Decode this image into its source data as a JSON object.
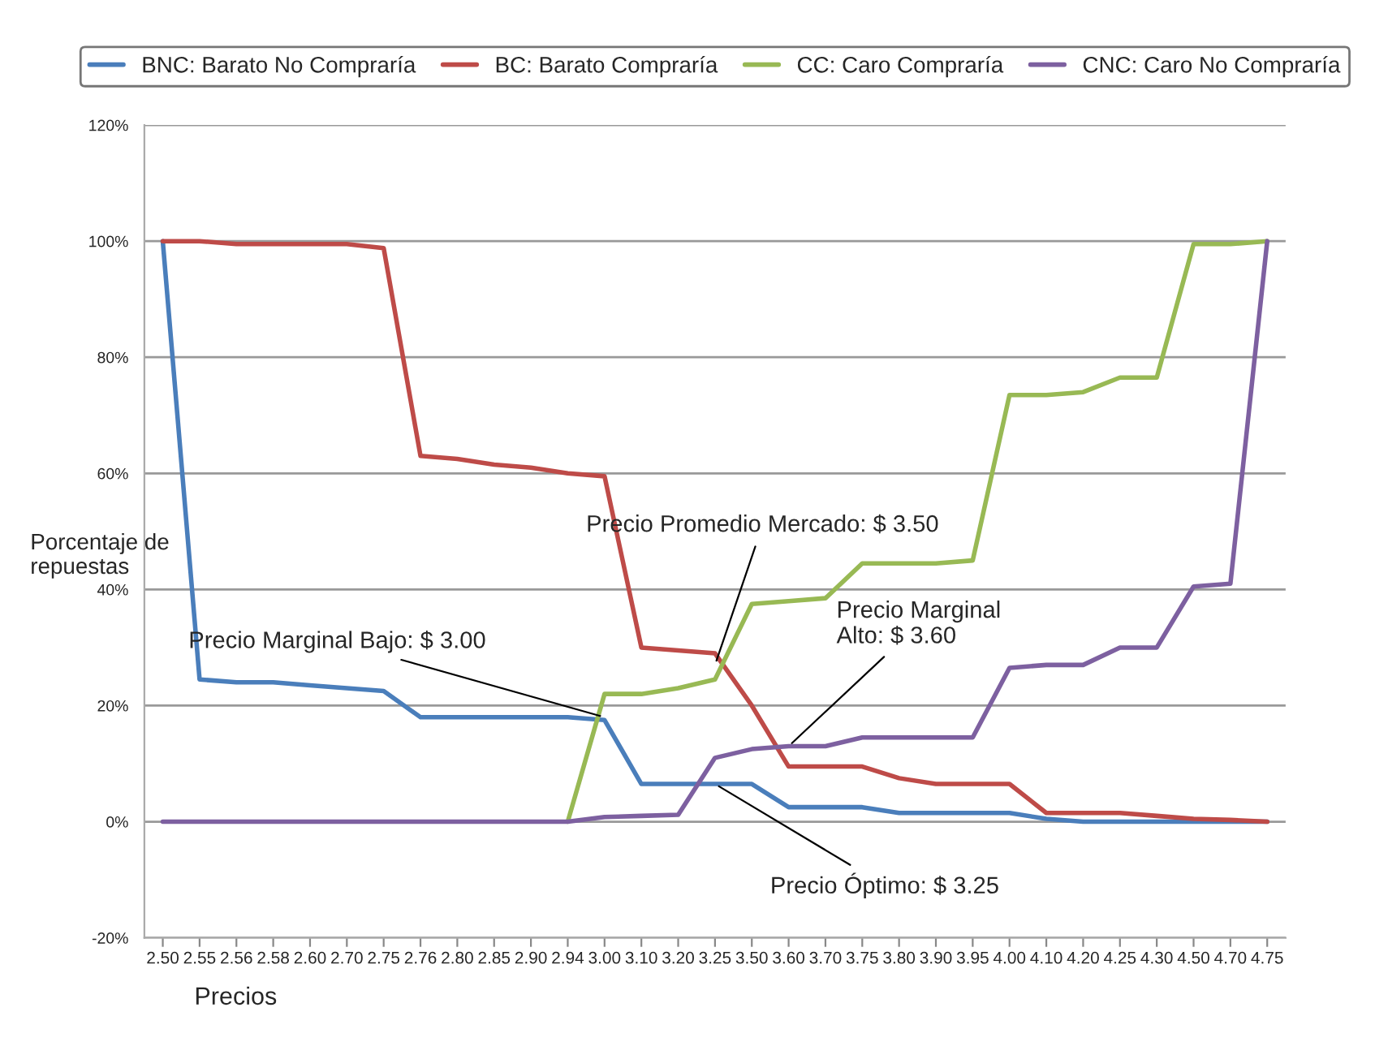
{
  "chart_data": {
    "type": "line",
    "xlabel": "Precios",
    "ylabel": "Porcentaje de\nrepuestas",
    "categories": [
      "2.50",
      "2.55",
      "2.56",
      "2.58",
      "2.60",
      "2.70",
      "2.75",
      "2.76",
      "2.80",
      "2.85",
      "2.90",
      "2.94",
      "3.00",
      "3.10",
      "3.20",
      "3.25",
      "3.50",
      "3.60",
      "3.70",
      "3.75",
      "3.80",
      "3.90",
      "3.95",
      "4.00",
      "4.10",
      "4.20",
      "4.25",
      "4.30",
      "4.50",
      "4.70",
      "4.75"
    ],
    "series": [
      {
        "name": "BNC: Barato No Compraría",
        "color": "#4a7ebb",
        "values": [
          100,
          24.5,
          24,
          24,
          23.5,
          23,
          22.5,
          18,
          18,
          18,
          18,
          18,
          17.5,
          6.5,
          6.5,
          6.5,
          6.5,
          2.5,
          2.5,
          2.5,
          1.5,
          1.5,
          1.5,
          1.5,
          0.5,
          0,
          0,
          0,
          0,
          0,
          0
        ]
      },
      {
        "name": "BC: Barato Compraría",
        "color": "#be4b48",
        "values": [
          100,
          100,
          99.5,
          99.5,
          99.5,
          99.5,
          98.8,
          63,
          62.5,
          61.5,
          61,
          60,
          59.5,
          30,
          29.5,
          29,
          20,
          9.5,
          9.5,
          9.5,
          7.5,
          6.5,
          6.5,
          6.5,
          1.5,
          1.5,
          1.5,
          1,
          0.5,
          0.3,
          0
        ]
      },
      {
        "name": "CC: Caro Compraría",
        "color": "#98b954",
        "values": [
          null,
          null,
          null,
          null,
          null,
          null,
          null,
          null,
          null,
          null,
          null,
          0,
          22,
          22,
          23,
          24.5,
          37.5,
          38,
          38.5,
          44.5,
          44.5,
          44.5,
          45,
          73.5,
          73.5,
          74,
          76.5,
          76.5,
          99.5,
          99.5,
          100
        ]
      },
      {
        "name": "CNC: Caro No Compraría",
        "color": "#7d60a0",
        "values": [
          0,
          0,
          0,
          0,
          0,
          0,
          0,
          0,
          0,
          0,
          0,
          0,
          0.8,
          1,
          1.2,
          11,
          12.5,
          13,
          13,
          14.5,
          14.5,
          14.5,
          14.5,
          26.5,
          27,
          27,
          30,
          30,
          40.5,
          41,
          100
        ]
      }
    ],
    "ylim": [
      -20,
      120
    ],
    "yticks": [
      {
        "value": -20,
        "label": "-20%"
      },
      {
        "value": 0,
        "label": "0%"
      },
      {
        "value": 20,
        "label": "20%"
      },
      {
        "value": 40,
        "label": "40%"
      },
      {
        "value": 60,
        "label": "60%"
      },
      {
        "value": 80,
        "label": "80%"
      },
      {
        "value": 100,
        "label": "100%"
      },
      {
        "value": 120,
        "label": "120%"
      }
    ],
    "grid": "y",
    "legend": "top",
    "marker": "none",
    "line_style": "solid",
    "annotations": [
      {
        "text": "Precio Promedio Mercado: $ 3.50",
        "x": "3.25",
        "y": 27
      },
      {
        "text": "Precio Marginal Bajo: $ 3.00",
        "x": "3.00",
        "y": 18
      },
      {
        "text": "Precio Marginal\nAlto: $ 3.60",
        "x": "3.60",
        "y": 13
      },
      {
        "text": "Precio Óptimo: $ 3.25",
        "x": "3.25",
        "y": 6.5
      }
    ]
  }
}
